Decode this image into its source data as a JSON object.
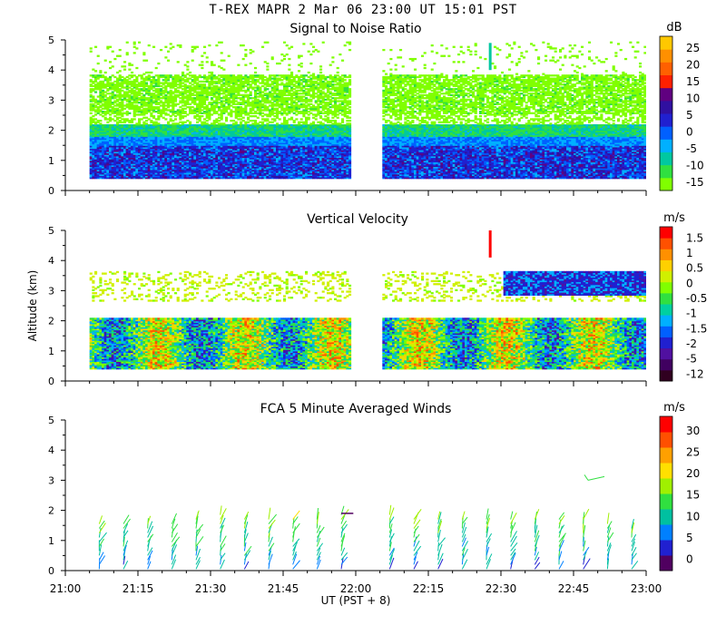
{
  "header": {
    "title": "T-REX   MAPR   2 Mar 06   23:00 UT   15:01   PST"
  },
  "colors": {
    "snr_scale": [
      "#80ff00",
      "#30e040",
      "#00c8a0",
      "#00b0ff",
      "#0060ff",
      "#2020d0",
      "#3010a0",
      "#600080",
      "#ff2000",
      "#ff6000",
      "#ff9000",
      "#ffc800"
    ],
    "vel_scale": [
      "#300020",
      "#400060",
      "#5010a0",
      "#2020d0",
      "#0060ff",
      "#00b0ff",
      "#00d0a0",
      "#30e040",
      "#80ff00",
      "#d0f000",
      "#ffd000",
      "#ff9000",
      "#ff5000",
      "#ff0000"
    ],
    "wind_scale": [
      "#500060",
      "#2020d0",
      "#0080ff",
      "#00c0a0",
      "#30e040",
      "#a0f000",
      "#ffe000",
      "#ffa000",
      "#ff5000",
      "#ff0000"
    ]
  },
  "chart_data": [
    {
      "type": "heatmap",
      "title": "Signal to Noise Ratio",
      "xlabel": "",
      "ylabel": "",
      "xlim": [
        "21:00",
        "23:00"
      ],
      "ylim": [
        0,
        5
      ],
      "x_ticks": [
        "21:00",
        "21:15",
        "21:30",
        "21:45",
        "22:00",
        "22:15",
        "22:30",
        "22:45",
        "23:00"
      ],
      "y_ticks": [
        "0",
        "1",
        "2",
        "3",
        "4",
        "5"
      ],
      "colorbar": {
        "unit": "dB",
        "ticks": [
          "25",
          "20",
          "15",
          "10",
          "5",
          "0",
          "-5",
          "-10",
          "-15"
        ],
        "range": [
          -15,
          28
        ]
      },
      "data_gap": [
        "21:59",
        "22:05"
      ],
      "notes_visible_layers": [
        {
          "altitude_km": [
            0.4,
            1.5
          ],
          "typical_dB": [
            0,
            5
          ]
        },
        {
          "altitude_km": [
            1.5,
            2.2
          ],
          "typical_dB": [
            -10,
            -5
          ]
        },
        {
          "altitude_km": [
            2.4,
            3.8
          ],
          "typical_dB": [
            -15,
            -10
          ]
        }
      ]
    },
    {
      "type": "heatmap",
      "title": "Vertical Velocity",
      "xlabel": "",
      "ylabel": "Altitude (km)",
      "xlim": [
        "21:00",
        "23:00"
      ],
      "ylim": [
        0,
        5
      ],
      "x_ticks": [
        "21:00",
        "21:15",
        "21:30",
        "21:45",
        "22:00",
        "22:15",
        "22:30",
        "22:45",
        "23:00"
      ],
      "y_ticks": [
        "0",
        "1",
        "2",
        "3",
        "4",
        "5"
      ],
      "colorbar": {
        "unit": "m/s",
        "ticks": [
          "1.5",
          "1",
          "0.5",
          "0",
          "-0.5",
          "-1",
          "-1.5",
          "-2",
          "-5",
          "-12"
        ],
        "range": [
          -12,
          2
        ]
      },
      "data_gap": [
        "21:59",
        "22:05"
      ]
    },
    {
      "type": "scatter",
      "title": "FCA 5 Minute Averaged Winds",
      "xlabel": "UT  (PST + 8)",
      "ylabel": "",
      "xlim": [
        "21:00",
        "23:00"
      ],
      "ylim": [
        0,
        5
      ],
      "x_ticks": [
        "21:00",
        "21:15",
        "21:30",
        "21:45",
        "22:00",
        "22:15",
        "22:30",
        "22:45",
        "23:00"
      ],
      "y_ticks": [
        "0",
        "1",
        "2",
        "3",
        "4",
        "5"
      ],
      "colorbar": {
        "unit": "m/s",
        "ticks": [
          "30",
          "25",
          "20",
          "15",
          "10",
          "5",
          "0"
        ],
        "range": [
          0,
          32
        ]
      },
      "profile_times": [
        "21:07",
        "21:12",
        "21:17",
        "21:22",
        "21:27",
        "21:32",
        "21:37",
        "21:42",
        "21:47",
        "21:52",
        "21:57",
        "22:07",
        "22:12",
        "22:17",
        "22:22",
        "22:27",
        "22:32",
        "22:37",
        "22:42",
        "22:47",
        "22:52",
        "22:57"
      ],
      "profile_tops_km": [
        1.55,
        1.6,
        1.6,
        1.65,
        1.75,
        1.9,
        1.75,
        1.7,
        1.75,
        1.7,
        1.85,
        1.95,
        1.7,
        1.7,
        1.8,
        1.7,
        1.75,
        1.75,
        1.75,
        1.8,
        1.6,
        1.5
      ]
    }
  ]
}
